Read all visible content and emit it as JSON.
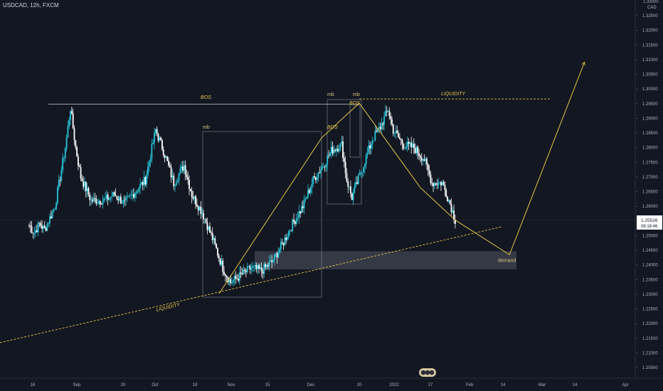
{
  "header": {
    "symbol_line": "USDCAD, 12h, FXCM"
  },
  "price_axis": {
    "top_partial": "1.33000",
    "currency": "CAD",
    "ticks": [
      "1.32500",
      "1.32000",
      "1.31500",
      "1.31000",
      "1.30500",
      "1.30000",
      "1.29500",
      "1.29000",
      "1.28500",
      "1.28000",
      "1.27500",
      "1.27000",
      "1.26500",
      "1.26000",
      "1.25000",
      "1.24500",
      "1.24000",
      "1.23500",
      "1.23000",
      "1.22500",
      "1.22000",
      "1.21500",
      "1.21000",
      "1.20500"
    ],
    "last_price": "1.25526",
    "countdown": "06:18:46"
  },
  "time_axis": {
    "labels": [
      "16",
      "Sep",
      "20",
      "Oct",
      "18",
      "Nov",
      "15",
      "Dec",
      "20",
      "2022",
      "17",
      "Feb",
      "14",
      "Mar",
      "14",
      "Apr"
    ]
  },
  "annotations": {
    "bos_top": "BOS",
    "mb_left": "mb",
    "bos_mid": "BOS",
    "mb_box": "mb",
    "mb_peak": "mb",
    "bos_peak": "BOS",
    "liquidity_top": "LIQUIDITY",
    "liquidity_bottom": "LIQUIDITY",
    "demand": "demand"
  },
  "colors": {
    "background": "#131722",
    "up_candle": "#26c6da",
    "down_candle": "#ffffff",
    "drawing": "#e8c547",
    "grid_box": "#787b86",
    "price_tag": "#ffffff"
  },
  "chart_data": {
    "type": "candlestick",
    "symbol": "USDCAD",
    "timeframe": "12h",
    "source": "FXCM",
    "ylim": [
      1.2,
      1.33
    ],
    "series": [
      {
        "close_path": [
          {
            "x": "Aug 03",
            "y": 1.2535
          },
          {
            "x": "Aug 05",
            "y": 1.251
          },
          {
            "x": "Aug 07",
            "y": 1.254
          },
          {
            "x": "Aug 09",
            "y": 1.252
          },
          {
            "x": "Aug 11",
            "y": 1.256
          },
          {
            "x": "Aug 13",
            "y": 1.26
          },
          {
            "x": "Aug 15",
            "y": 1.27
          },
          {
            "x": "Aug 17",
            "y": 1.28
          },
          {
            "x": "Aug 19",
            "y": 1.2935
          },
          {
            "x": "Aug 21",
            "y": 1.28
          },
          {
            "x": "Aug 23",
            "y": 1.27
          },
          {
            "x": "Aug 27",
            "y": 1.262
          },
          {
            "x": "Sep 01",
            "y": 1.262
          },
          {
            "x": "Sep 05",
            "y": 1.264
          },
          {
            "x": "Sep 09",
            "y": 1.261
          },
          {
            "x": "Sep 13",
            "y": 1.265
          },
          {
            "x": "Sep 17",
            "y": 1.269
          },
          {
            "x": "Sep 21",
            "y": 1.286
          },
          {
            "x": "Sep 24",
            "y": 1.279
          },
          {
            "x": "Sep 28",
            "y": 1.268
          },
          {
            "x": "Oct 02",
            "y": 1.274
          },
          {
            "x": "Oct 05",
            "y": 1.264
          },
          {
            "x": "Oct 09",
            "y": 1.258
          },
          {
            "x": "Oct 13",
            "y": 1.249
          },
          {
            "x": "Oct 17",
            "y": 1.239
          },
          {
            "x": "Oct 20",
            "y": 1.234
          },
          {
            "x": "Oct 24",
            "y": 1.2365
          },
          {
            "x": "Oct 28",
            "y": 1.239
          },
          {
            "x": "Nov 01",
            "y": 1.238
          },
          {
            "x": "Nov 05",
            "y": 1.241
          },
          {
            "x": "Nov 09",
            "y": 1.247
          },
          {
            "x": "Nov 13",
            "y": 1.254
          },
          {
            "x": "Nov 17",
            "y": 1.26
          },
          {
            "x": "Nov 21",
            "y": 1.269
          },
          {
            "x": "Nov 25",
            "y": 1.274
          },
          {
            "x": "Nov 28",
            "y": 1.279
          },
          {
            "x": "Dec 02",
            "y": 1.281
          },
          {
            "x": "Dec 04",
            "y": 1.269
          },
          {
            "x": "Dec 06",
            "y": 1.263
          },
          {
            "x": "Dec 10",
            "y": 1.273
          },
          {
            "x": "Dec 14",
            "y": 1.283
          },
          {
            "x": "Dec 17",
            "y": 1.287
          },
          {
            "x": "Dec 20",
            "y": 1.293
          },
          {
            "x": "Dec 22",
            "y": 1.286
          },
          {
            "x": "Dec 26",
            "y": 1.281
          },
          {
            "x": "Dec 30",
            "y": 1.28
          },
          {
            "x": "Jan 03",
            "y": 1.276
          },
          {
            "x": "Jan 06",
            "y": 1.268
          },
          {
            "x": "Jan 10",
            "y": 1.268
          },
          {
            "x": "Jan 13",
            "y": 1.261
          },
          {
            "x": "Jan 15",
            "y": 1.2553
          }
        ]
      }
    ],
    "levels": {
      "bos_top": 1.29485,
      "liquidity_top": 1.29659,
      "demand_zone": [
        1.2385,
        1.2447
      ],
      "last_price": 1.25526
    },
    "projection": [
      {
        "x": "Jan 15",
        "y": 1.2553
      },
      {
        "x": "Feb 05",
        "y": 1.2435
      },
      {
        "x": "Mar 06",
        "y": 1.309
      }
    ],
    "x_tick_labels": [
      "16",
      "Sep",
      "20",
      "Oct",
      "18",
      "Nov",
      "15",
      "Dec",
      "20",
      "2022",
      "17",
      "Feb",
      "14",
      "Mar",
      "14",
      "Apr"
    ],
    "y_tick_labels": [
      "1.32500",
      "1.32000",
      "1.31500",
      "1.31000",
      "1.30500",
      "1.30000",
      "1.29500",
      "1.29000",
      "1.28500",
      "1.28000",
      "1.27500",
      "1.27000",
      "1.26500",
      "1.26000",
      "1.25000",
      "1.24500",
      "1.24000",
      "1.23500",
      "1.23000",
      "1.22500",
      "1.22000",
      "1.21500",
      "1.21000",
      "1.20500"
    ]
  }
}
